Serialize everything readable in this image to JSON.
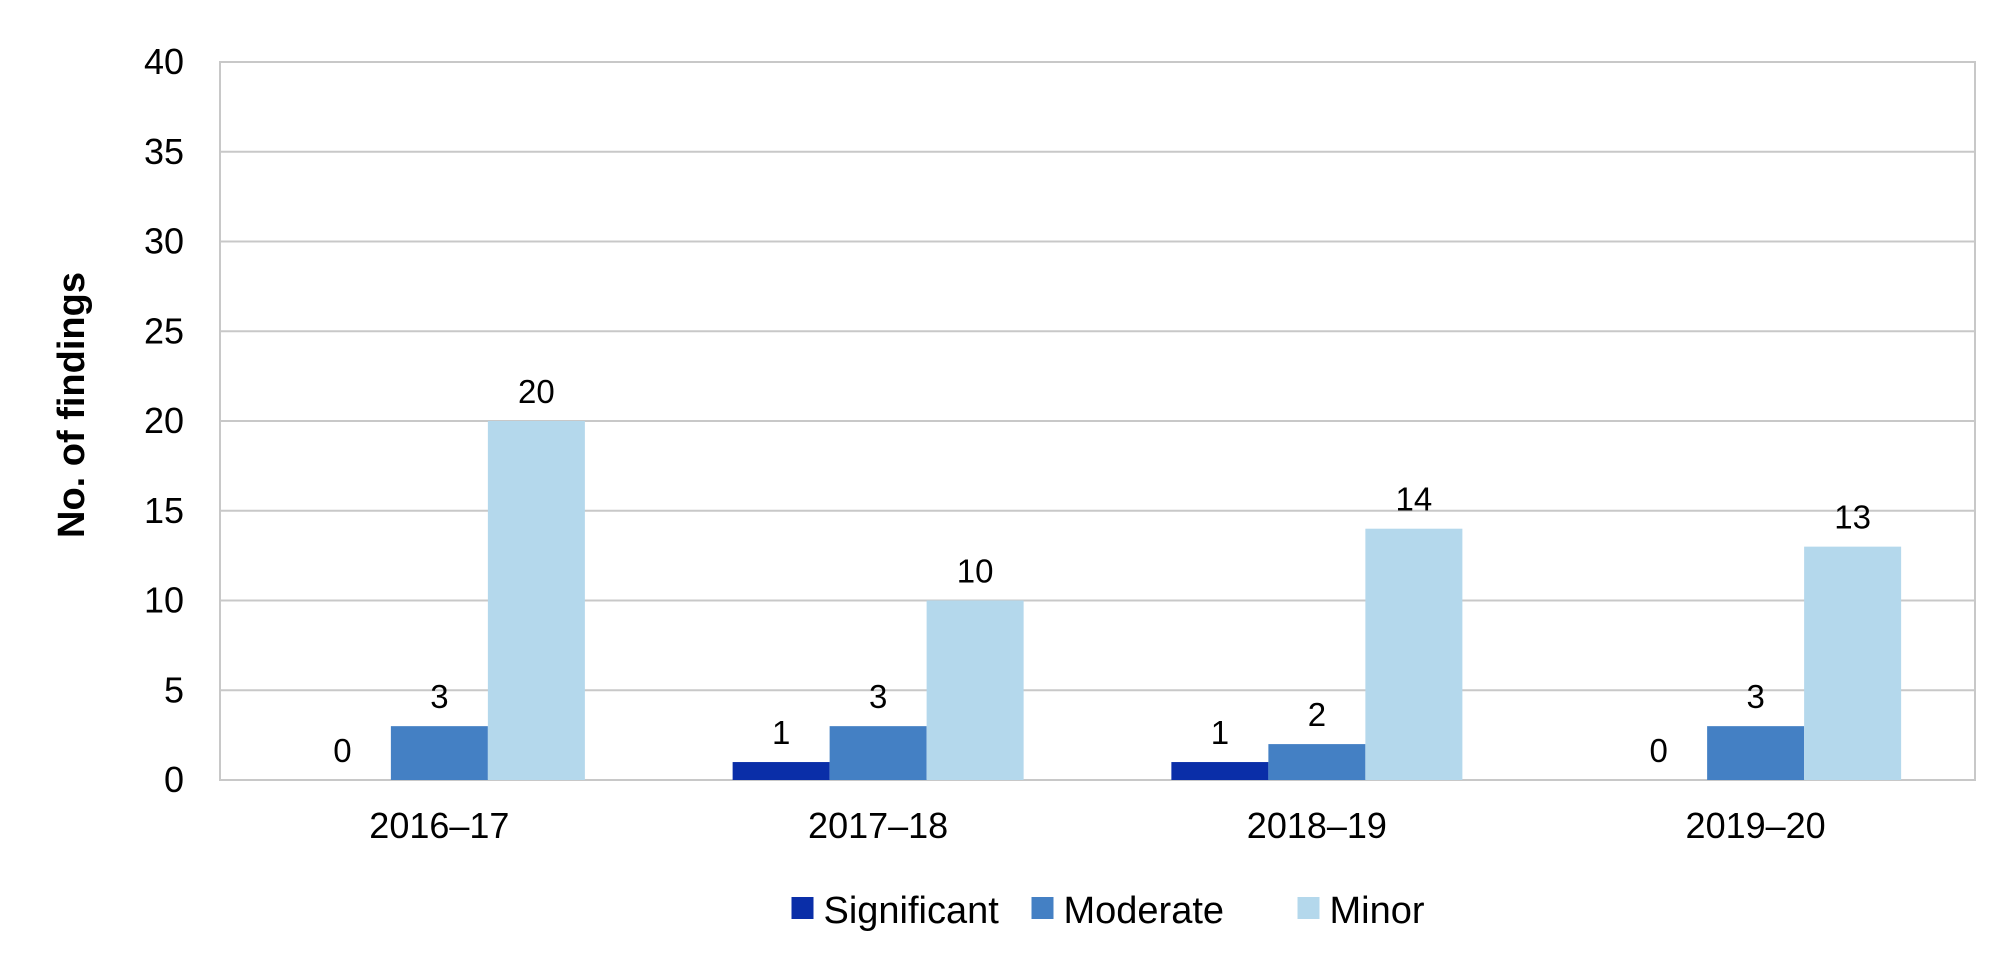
{
  "chart_data": {
    "type": "bar",
    "categories": [
      "2016–17",
      "2017–18",
      "2018–19",
      "2019–20"
    ],
    "series": [
      {
        "name": "Significant",
        "color": "#0a2ea8",
        "values": [
          0,
          1,
          1,
          0
        ]
      },
      {
        "name": "Moderate",
        "color": "#4480c4",
        "values": [
          3,
          3,
          2,
          3
        ]
      },
      {
        "name": "Minor",
        "color": "#b4d8ec",
        "values": [
          20,
          10,
          14,
          13
        ]
      }
    ],
    "title": "",
    "xlabel": "",
    "ylabel": "No. of findings",
    "ylim": [
      0,
      40
    ],
    "yticks": [
      0,
      5,
      10,
      15,
      20,
      25,
      30,
      35,
      40
    ],
    "grid": true,
    "legend": "bottom",
    "data_labels": true
  }
}
